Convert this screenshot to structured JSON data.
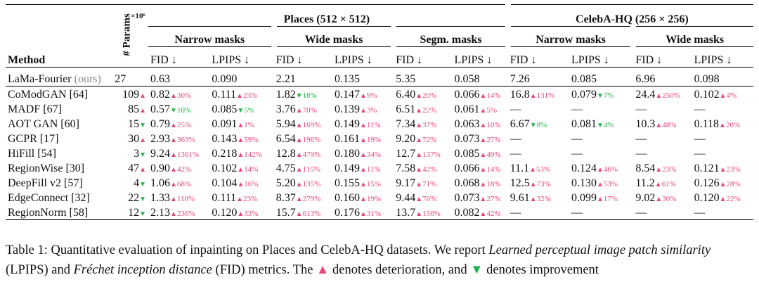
{
  "table": {
    "method_header": "Method",
    "params_header": "# Params",
    "params_exp": "×10⁶",
    "groups": [
      "Places (512 × 512)",
      "CelebA-HQ (256 × 256)"
    ],
    "subgroups": [
      "Narrow masks",
      "Wide masks",
      "Segm. masks",
      "Narrow masks",
      "Wide masks"
    ],
    "metric_fid": "FID ↓",
    "metric_lpips": "LPIPS ↓",
    "ours_row": {
      "name": "LaMa-Fourier",
      "tag": "(ours)",
      "params": "27",
      "cells": [
        "0.63",
        "0.090",
        "2.21",
        "0.135",
        "5.35",
        "0.058",
        "7.26",
        "0.085",
        "6.96",
        "0.098"
      ]
    },
    "rows": [
      {
        "name": "CoModGAN [64]",
        "params": "109",
        "pdir": "up",
        "cells": [
          {
            "v": "0.82",
            "d": "30%",
            "dir": "up"
          },
          {
            "v": "0.111",
            "d": "23%",
            "dir": "up"
          },
          {
            "v": "1.82",
            "d": "18%",
            "dir": "dn"
          },
          {
            "v": "0.147",
            "d": "9%",
            "dir": "up"
          },
          {
            "v": "6.40",
            "d": "20%",
            "dir": "up"
          },
          {
            "v": "0.066",
            "d": "14%",
            "dir": "up"
          },
          {
            "v": "16.8",
            "d": "131%",
            "dir": "up"
          },
          {
            "v": "0.079",
            "d": "7%",
            "dir": "dn"
          },
          {
            "v": "24.4",
            "d": "250%",
            "dir": "up"
          },
          {
            "v": "0.102",
            "d": "4%",
            "dir": "up"
          }
        ]
      },
      {
        "name": "MADF [67]",
        "params": "85",
        "pdir": "up",
        "cells": [
          {
            "v": "0.57",
            "d": "10%",
            "dir": "dn"
          },
          {
            "v": "0.085",
            "d": "5%",
            "dir": "dn"
          },
          {
            "v": "3.76",
            "d": "70%",
            "dir": "up"
          },
          {
            "v": "0.139",
            "d": "3%",
            "dir": "up"
          },
          {
            "v": "6.51",
            "d": "22%",
            "dir": "up"
          },
          {
            "v": "0.061",
            "d": "5%",
            "dir": "up"
          },
          {
            "v": "—"
          },
          {
            "v": "—"
          },
          {
            "v": "—"
          },
          {
            "v": "—"
          }
        ]
      },
      {
        "name": "AOT GAN [60]",
        "params": "15",
        "pdir": "dn",
        "cells": [
          {
            "v": "0.79",
            "d": "25%",
            "dir": "up"
          },
          {
            "v": "0.091",
            "d": "1%",
            "dir": "up"
          },
          {
            "v": "5.94",
            "d": "169%",
            "dir": "up"
          },
          {
            "v": "0.149",
            "d": "11%",
            "dir": "up"
          },
          {
            "v": "7.34",
            "d": "37%",
            "dir": "up"
          },
          {
            "v": "0.063",
            "d": "10%",
            "dir": "up"
          },
          {
            "v": "6.67",
            "d": "8%",
            "dir": "dn"
          },
          {
            "v": "0.081",
            "d": "4%",
            "dir": "dn"
          },
          {
            "v": "10.3",
            "d": "48%",
            "dir": "up"
          },
          {
            "v": "0.118",
            "d": "20%",
            "dir": "up"
          }
        ]
      },
      {
        "name": "GCPR [17]",
        "params": "30",
        "pdir": "up",
        "cells": [
          {
            "v": "2.93",
            "d": "363%",
            "dir": "up"
          },
          {
            "v": "0.143",
            "d": "59%",
            "dir": "up"
          },
          {
            "v": "6.54",
            "d": "196%",
            "dir": "up"
          },
          {
            "v": "0.161",
            "d": "19%",
            "dir": "up"
          },
          {
            "v": "9.20",
            "d": "72%",
            "dir": "up"
          },
          {
            "v": "0.073",
            "d": "27%",
            "dir": "up"
          },
          {
            "v": "—"
          },
          {
            "v": "—"
          },
          {
            "v": "—"
          },
          {
            "v": "—"
          }
        ]
      },
      {
        "name": "HiFill [54]",
        "params": "3",
        "pdir": "dn",
        "cells": [
          {
            "v": "9.24",
            "d": "1361%",
            "dir": "up"
          },
          {
            "v": "0.218",
            "d": "142%",
            "dir": "up"
          },
          {
            "v": "12.8",
            "d": "479%",
            "dir": "up"
          },
          {
            "v": "0.180",
            "d": "34%",
            "dir": "up"
          },
          {
            "v": "12.7",
            "d": "137%",
            "dir": "up"
          },
          {
            "v": "0.085",
            "d": "49%",
            "dir": "up"
          },
          {
            "v": "—"
          },
          {
            "v": "—"
          },
          {
            "v": "—"
          },
          {
            "v": "—"
          }
        ]
      },
      {
        "name": "RegionWise [30]",
        "params": "47",
        "pdir": "up",
        "cells": [
          {
            "v": "0.90",
            "d": "42%",
            "dir": "up"
          },
          {
            "v": "0.102",
            "d": "14%",
            "dir": "up"
          },
          {
            "v": "4.75",
            "d": "115%",
            "dir": "up"
          },
          {
            "v": "0.149",
            "d": "11%",
            "dir": "up"
          },
          {
            "v": "7.58",
            "d": "42%",
            "dir": "up"
          },
          {
            "v": "0.066",
            "d": "14%",
            "dir": "up"
          },
          {
            "v": "11.1",
            "d": "53%",
            "dir": "up"
          },
          {
            "v": "0.124",
            "d": "46%",
            "dir": "up"
          },
          {
            "v": "8.54",
            "d": "23%",
            "dir": "up"
          },
          {
            "v": "0.121",
            "d": "23%",
            "dir": "up"
          }
        ]
      },
      {
        "name": "DeepFill v2 [57]",
        "params": "4",
        "pdir": "dn",
        "cells": [
          {
            "v": "1.06",
            "d": "68%",
            "dir": "up"
          },
          {
            "v": "0.104",
            "d": "16%",
            "dir": "up"
          },
          {
            "v": "5.20",
            "d": "135%",
            "dir": "up"
          },
          {
            "v": "0.155",
            "d": "15%",
            "dir": "up"
          },
          {
            "v": "9.17",
            "d": "71%",
            "dir": "up"
          },
          {
            "v": "0.068",
            "d": "18%",
            "dir": "up"
          },
          {
            "v": "12.5",
            "d": "73%",
            "dir": "up"
          },
          {
            "v": "0.130",
            "d": "53%",
            "dir": "up"
          },
          {
            "v": "11.2",
            "d": "61%",
            "dir": "up"
          },
          {
            "v": "0.126",
            "d": "28%",
            "dir": "up"
          }
        ]
      },
      {
        "name": "EdgeConnect [32]",
        "params": "22",
        "pdir": "dn",
        "cells": [
          {
            "v": "1.33",
            "d": "110%",
            "dir": "up"
          },
          {
            "v": "0.111",
            "d": "23%",
            "dir": "up"
          },
          {
            "v": "8.37",
            "d": "279%",
            "dir": "up"
          },
          {
            "v": "0.160",
            "d": "19%",
            "dir": "up"
          },
          {
            "v": "9.44",
            "d": "76%",
            "dir": "up"
          },
          {
            "v": "0.073",
            "d": "27%",
            "dir": "up"
          },
          {
            "v": "9.61",
            "d": "32%",
            "dir": "up"
          },
          {
            "v": "0.099",
            "d": "17%",
            "dir": "up"
          },
          {
            "v": "9.02",
            "d": "30%",
            "dir": "up"
          },
          {
            "v": "0.120",
            "d": "22%",
            "dir": "up"
          }
        ]
      },
      {
        "name": "RegionNorm [58]",
        "params": "12",
        "pdir": "dn",
        "cells": [
          {
            "v": "2.13",
            "d": "236%",
            "dir": "up"
          },
          {
            "v": "0.120",
            "d": "33%",
            "dir": "up"
          },
          {
            "v": "15.7",
            "d": "613%",
            "dir": "up"
          },
          {
            "v": "0.176",
            "d": "31%",
            "dir": "up"
          },
          {
            "v": "13.7",
            "d": "156%",
            "dir": "up"
          },
          {
            "v": "0.082",
            "d": "42%",
            "dir": "up"
          },
          {
            "v": "—"
          },
          {
            "v": "—"
          },
          {
            "v": "—"
          },
          {
            "v": "—"
          }
        ]
      }
    ]
  },
  "caption": {
    "t1": "Table 1: Quantitative evaluation of inpainting on Places and CelebA-HQ datasets. We report ",
    "i1": "Learned perceptual image patch similarity",
    "t2": " (LPIPS) and ",
    "i2": "Fréchet inception distance",
    "t3": " (FID) metrics. The ",
    "up_symbol": "▲",
    "t4": " denotes deterioration, and ",
    "dn_symbol": "▼",
    "t5": " denotes improvement"
  },
  "colors": {
    "up": "#e8457a",
    "down": "#22b34a"
  }
}
